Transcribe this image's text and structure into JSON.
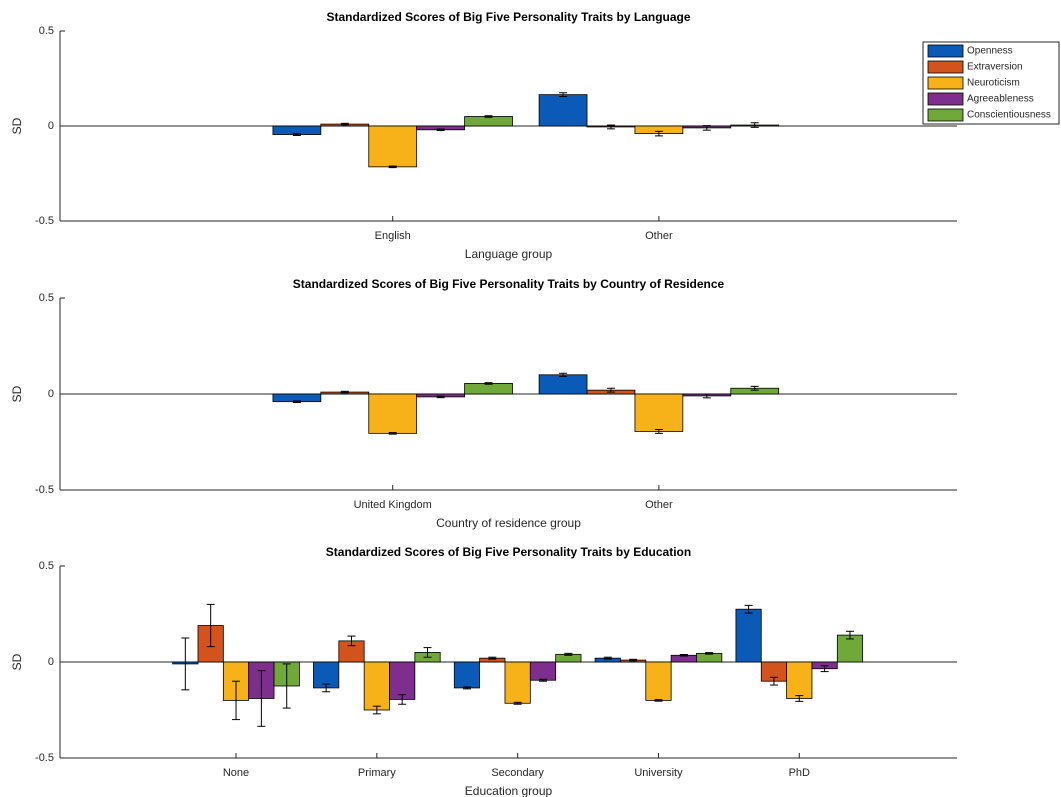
{
  "chart_data": [
    {
      "type": "bar",
      "title": "Standardized Scores of Big Five Personality Traits by Language",
      "x_label": "Language group",
      "y_label": "SD",
      "categories": [
        "English",
        "Other"
      ],
      "ylim": [
        -0.5,
        0.5
      ],
      "yticks": [
        -0.5,
        0,
        0.5
      ],
      "legend": "northeast",
      "series": [
        {
          "name": "Openness",
          "color": "#0b5ab8",
          "values": [
            -0.045,
            0.165
          ],
          "errors": [
            0.005,
            0.01
          ]
        },
        {
          "name": "Extraversion",
          "color": "#d2531c",
          "values": [
            0.01,
            -0.005
          ],
          "errors": [
            0.004,
            0.01
          ]
        },
        {
          "name": "Neuroticism",
          "color": "#f7b21a",
          "values": [
            -0.215,
            -0.04
          ],
          "errors": [
            0.004,
            0.012
          ]
        },
        {
          "name": "Agreeableness",
          "color": "#7e2f8e",
          "values": [
            -0.02,
            -0.01
          ],
          "errors": [
            0.004,
            0.012
          ]
        },
        {
          "name": "Conscientiousness",
          "color": "#70a83a",
          "values": [
            0.05,
            0.005
          ],
          "errors": [
            0.004,
            0.012
          ]
        }
      ]
    },
    {
      "type": "bar",
      "title": "Standardized Scores of Big Five Personality Traits by Country of Residence",
      "x_label": "Country of residence group",
      "y_label": "SD",
      "categories": [
        "United Kingdom",
        "Other"
      ],
      "ylim": [
        -0.5,
        0.5
      ],
      "yticks": [
        -0.5,
        0,
        0.5
      ],
      "series": [
        {
          "color": "#0b5ab8",
          "values": [
            -0.04,
            0.1
          ],
          "errors": [
            0.004,
            0.008
          ]
        },
        {
          "color": "#d2531c",
          "values": [
            0.01,
            0.02
          ],
          "errors": [
            0.004,
            0.01
          ]
        },
        {
          "color": "#f7b21a",
          "values": [
            -0.205,
            -0.195
          ],
          "errors": [
            0.004,
            0.01
          ]
        },
        {
          "color": "#7e2f8e",
          "values": [
            -0.015,
            -0.01
          ],
          "errors": [
            0.004,
            0.01
          ]
        },
        {
          "color": "#70a83a",
          "values": [
            0.055,
            0.03
          ],
          "errors": [
            0.004,
            0.01
          ]
        }
      ]
    },
    {
      "type": "bar",
      "title": "Standardized Scores of Big Five Personality Traits by Education",
      "x_label": "Education group",
      "y_label": "SD",
      "categories": [
        "None",
        "Primary",
        "Secondary",
        "University",
        "PhD"
      ],
      "ylim": [
        -0.5,
        0.5
      ],
      "yticks": [
        -0.5,
        0,
        0.5
      ],
      "series": [
        {
          "color": "#0b5ab8",
          "values": [
            -0.01,
            -0.135,
            -0.135,
            0.02,
            0.275
          ],
          "errors": [
            0.135,
            0.02,
            0.005,
            0.005,
            0.02
          ]
        },
        {
          "color": "#d2531c",
          "values": [
            0.19,
            0.11,
            0.02,
            0.01,
            -0.1
          ],
          "errors": [
            0.11,
            0.025,
            0.005,
            0.004,
            0.02
          ]
        },
        {
          "color": "#f7b21a",
          "values": [
            -0.2,
            -0.25,
            -0.215,
            -0.2,
            -0.19
          ],
          "errors": [
            0.1,
            0.02,
            0.005,
            0.004,
            0.015
          ]
        },
        {
          "color": "#7e2f8e",
          "values": [
            -0.19,
            -0.195,
            -0.095,
            0.035,
            -0.035
          ],
          "errors": [
            0.145,
            0.025,
            0.005,
            0.004,
            0.015
          ]
        },
        {
          "color": "#70a83a",
          "values": [
            -0.125,
            0.05,
            0.04,
            0.045,
            0.14
          ],
          "errors": [
            0.115,
            0.025,
            0.005,
            0.004,
            0.02
          ]
        }
      ]
    }
  ]
}
